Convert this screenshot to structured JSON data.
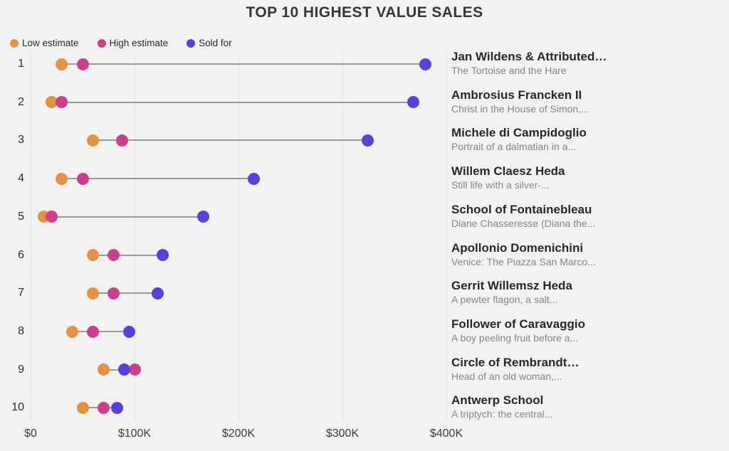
{
  "title": "TOP 10 HIGHEST VALUE SALES",
  "colors": {
    "background": "#F2F2F2",
    "low": "#E79240",
    "high": "#CE3E8C",
    "sold": "#5541DB",
    "connector": "#9A9A9A",
    "gridline": "#E2E2E2"
  },
  "legend": [
    {
      "label": "Low estimate",
      "color_key": "low"
    },
    {
      "label": "High estimate",
      "color_key": "high"
    },
    {
      "label": "Sold for",
      "color_key": "sold"
    }
  ],
  "chart_data": {
    "type": "scatter",
    "variant": "dumbbell-dot-plot",
    "title": "TOP 10 HIGHEST VALUE SALES",
    "series_names": [
      "Low estimate",
      "High estimate",
      "Sold for"
    ],
    "x_axis": {
      "ticks": [
        "$0",
        "$100K",
        "$200K",
        "$300K",
        "$400K"
      ],
      "values_k": [
        0,
        100,
        200,
        300,
        400
      ],
      "range_k": [
        0,
        430
      ],
      "grid": true
    },
    "legend_position": "top-left",
    "rows": [
      {
        "rank": "1",
        "artist": "Jan Wildens & Attributed…",
        "work": "The Tortoise and the Hare",
        "low_k": 30,
        "high_k": 50,
        "sold_k": 380
      },
      {
        "rank": "2",
        "artist": "Ambrosius Francken II",
        "work": "Christ in the House of Simon,...",
        "low_k": 20,
        "high_k": 30,
        "sold_k": 368
      },
      {
        "rank": "3",
        "artist": "Michele di Campidoglio",
        "work": "Portrait of a dalmatian in a...",
        "low_k": 60,
        "high_k": 88,
        "sold_k": 324
      },
      {
        "rank": "4",
        "artist": "Willem Claesz Heda",
        "work": "Still life with a silver-...",
        "low_k": 30,
        "high_k": 50,
        "sold_k": 215
      },
      {
        "rank": "5",
        "artist": "School of Fontainebleau",
        "work": "Diane Chasseresse (Diana the...",
        "low_k": 13,
        "high_k": 20,
        "sold_k": 166
      },
      {
        "rank": "6",
        "artist": "Apollonio Domenichini",
        "work": "Venice: The Piazza San Marco...",
        "low_k": 60,
        "high_k": 80,
        "sold_k": 127
      },
      {
        "rank": "7",
        "artist": "Gerrit Willemsz Heda",
        "work": "A pewter flagon, a salt...",
        "low_k": 60,
        "high_k": 80,
        "sold_k": 122
      },
      {
        "rank": "8",
        "artist": "Follower of Caravaggio",
        "work": "A boy peeling fruit before a...",
        "low_k": 40,
        "high_k": 60,
        "sold_k": 95
      },
      {
        "rank": "9",
        "artist": "Circle of Rembrandt…",
        "work": "Head of an old woman,...",
        "low_k": 70,
        "high_k": 100,
        "sold_k": 90
      },
      {
        "rank": "10",
        "artist": "Antwerp School",
        "work": "A triptych: the central...",
        "low_k": 50,
        "high_k": 70,
        "sold_k": 83
      }
    ]
  }
}
